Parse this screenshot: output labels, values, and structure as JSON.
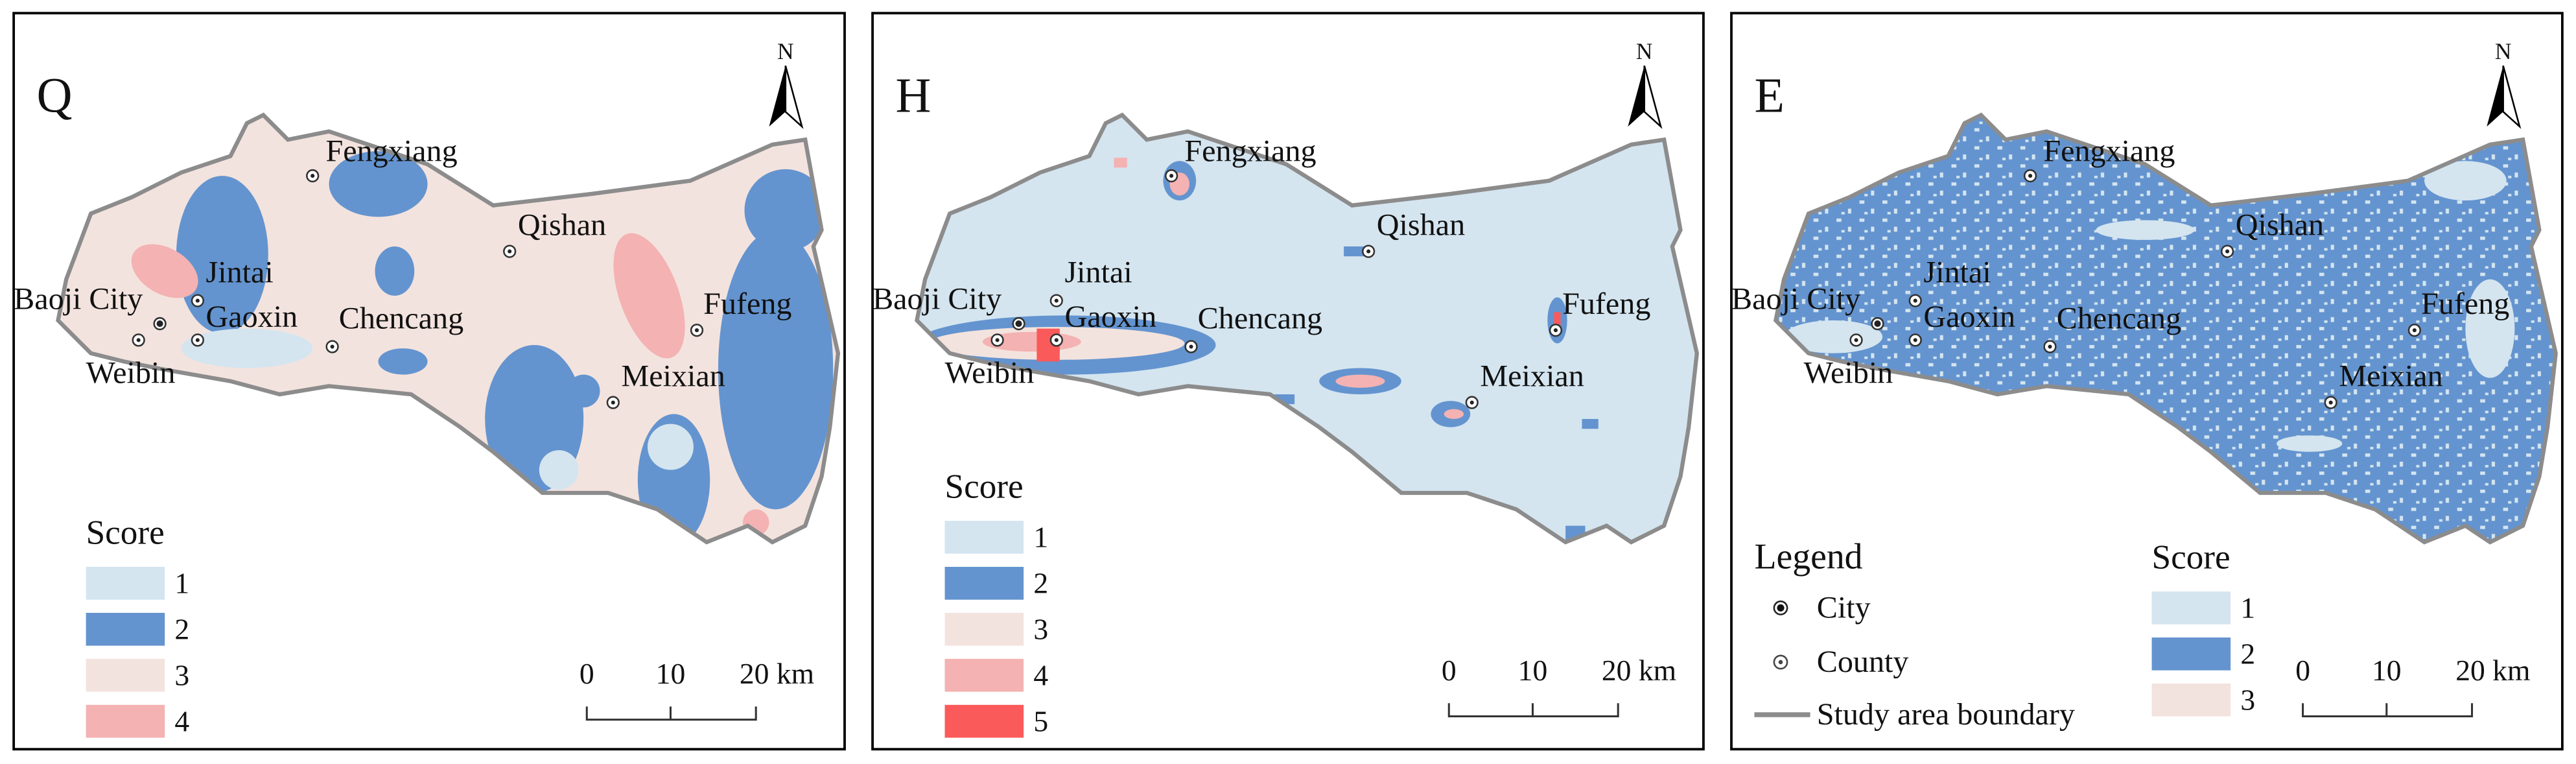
{
  "panels": [
    {
      "letter": "Q",
      "places": [
        "Baoji City",
        "Weibin",
        "Jintai",
        "Gaoxin",
        "Chencang",
        "Fengxiang",
        "Qishan",
        "Fufeng",
        "Meixian"
      ],
      "legend": {
        "title": "Score",
        "items": [
          {
            "label": "1",
            "color": "#d4e5f0"
          },
          {
            "label": "2",
            "color": "#6494cf"
          },
          {
            "label": "3",
            "color": "#f3e3de"
          },
          {
            "label": "4",
            "color": "#f4b2b2"
          }
        ]
      },
      "scale": [
        "0",
        "10",
        "20 km"
      ],
      "north": "N"
    },
    {
      "letter": "H",
      "places": [
        "Baoji City",
        "Weibin",
        "Jintai",
        "Gaoxin",
        "Chencang",
        "Fengxiang",
        "Qishan",
        "Fufeng",
        "Meixian"
      ],
      "legend": {
        "title": "Score",
        "items": [
          {
            "label": "1",
            "color": "#d4e5f0"
          },
          {
            "label": "2",
            "color": "#6494cf"
          },
          {
            "label": "3",
            "color": "#f3e3de"
          },
          {
            "label": "4",
            "color": "#f4b2b2"
          },
          {
            "label": "5",
            "color": "#fb5a5a"
          }
        ]
      },
      "scale": [
        "0",
        "10",
        "20 km"
      ],
      "north": "N"
    },
    {
      "letter": "E",
      "places": [
        "Baoji City",
        "Weibin",
        "Jintai",
        "Gaoxin",
        "Chencang",
        "Fengxiang",
        "Qishan",
        "Fufeng",
        "Meixian"
      ],
      "legend": {
        "title": "Score",
        "items": [
          {
            "label": "1",
            "color": "#d4e5f0"
          },
          {
            "label": "2",
            "color": "#6494cf"
          },
          {
            "label": "3",
            "color": "#f3e3de"
          }
        ]
      },
      "scale": [
        "0",
        "10",
        "20 km"
      ],
      "north": "N"
    }
  ],
  "general_legend": {
    "title": "Legend",
    "city": "City",
    "county": "County",
    "boundary": "Study area boundary"
  }
}
